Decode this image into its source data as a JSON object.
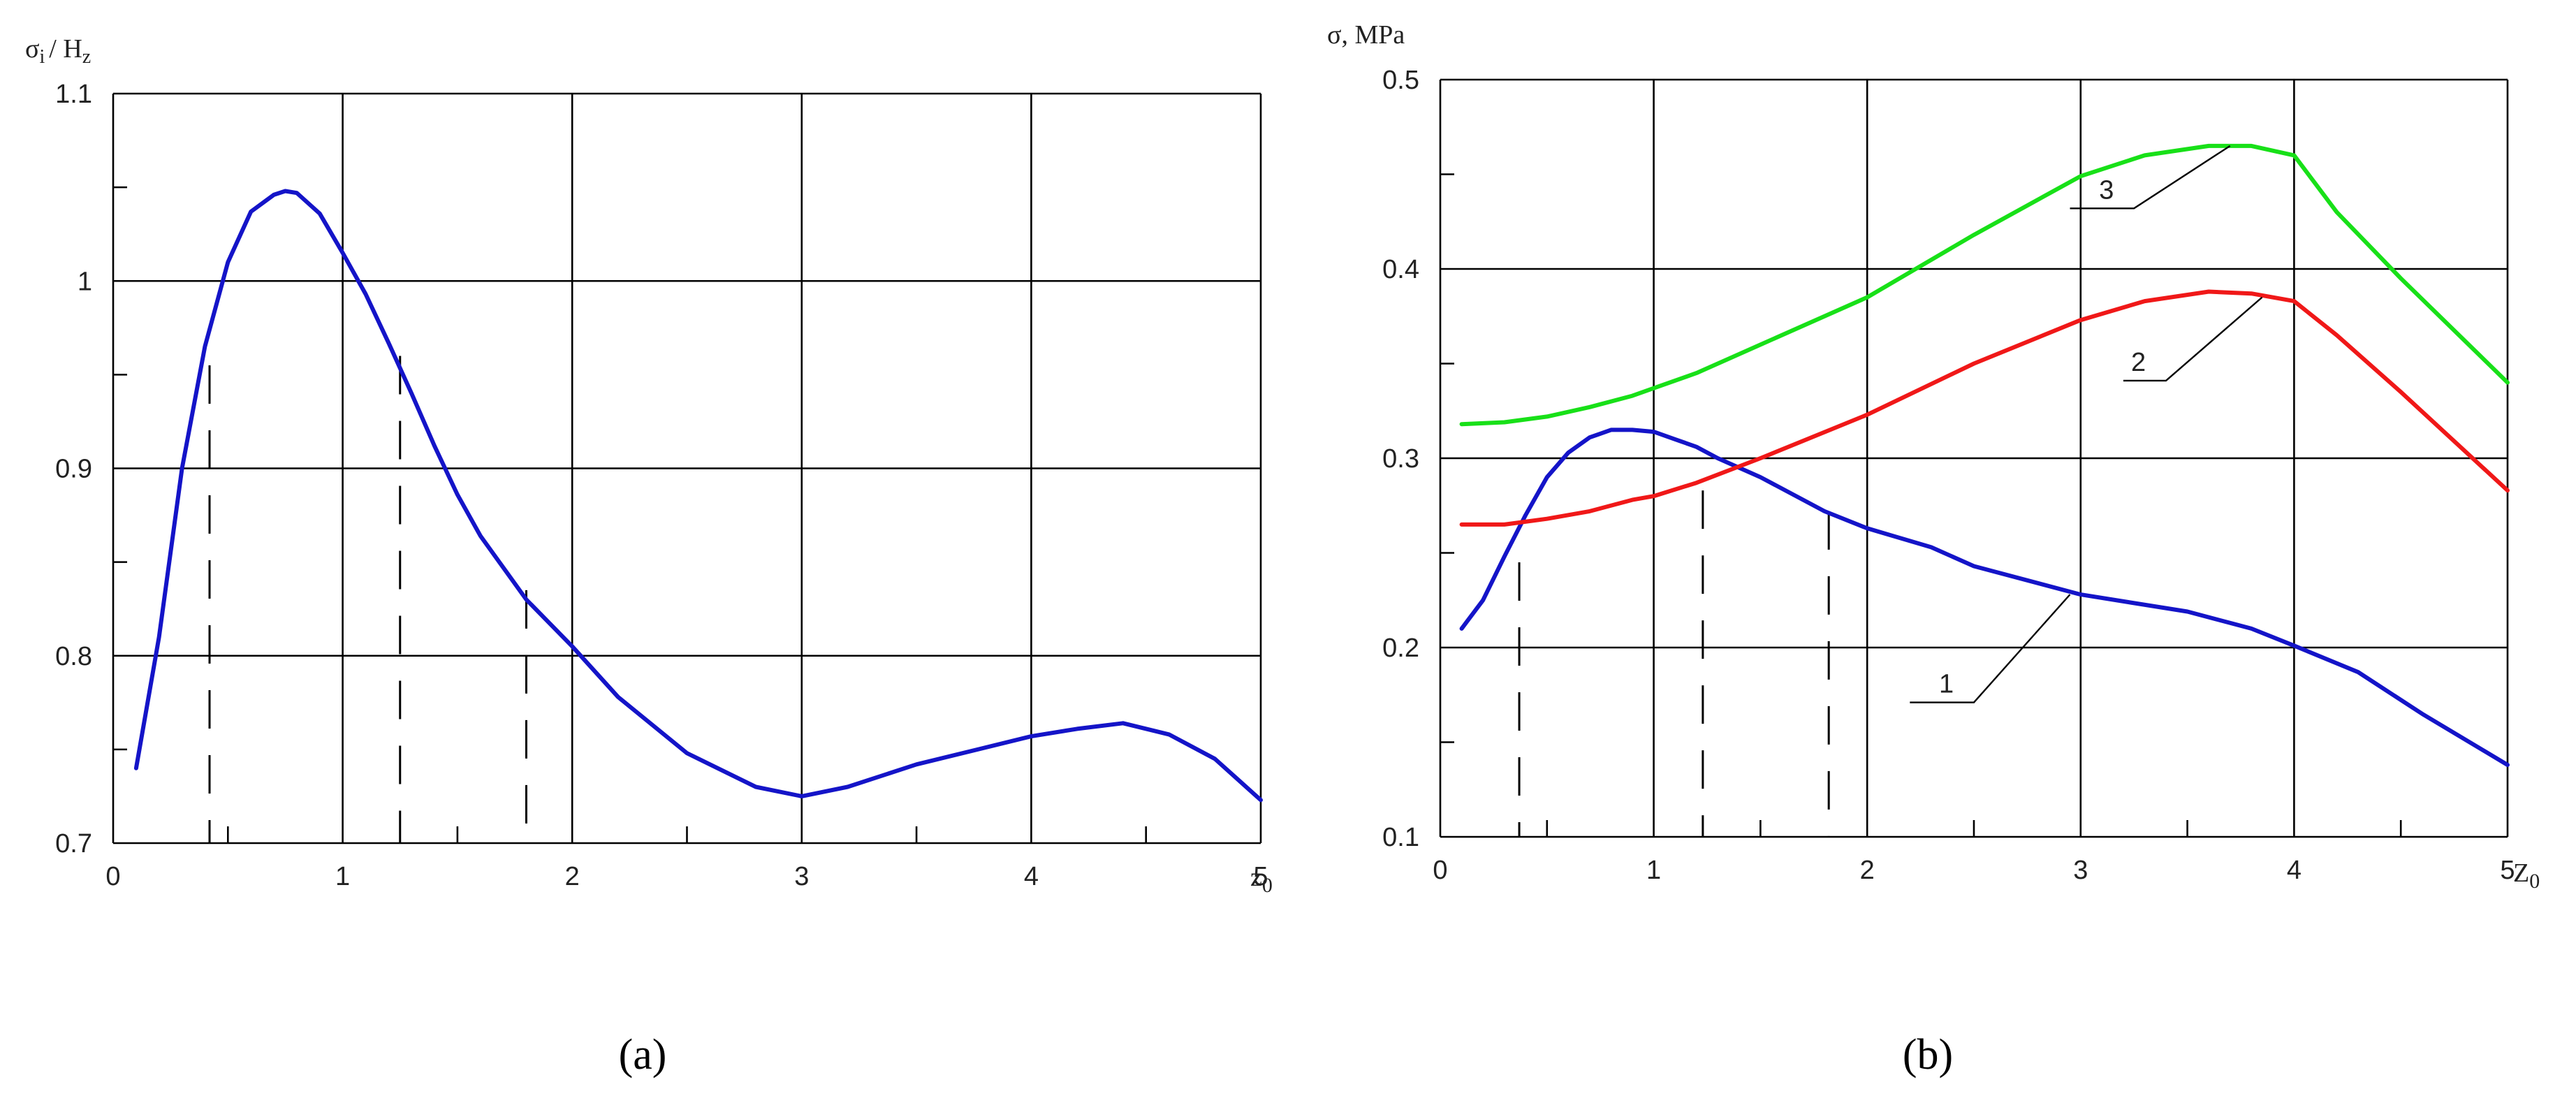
{
  "chart_data": [
    {
      "id": "a",
      "type": "line",
      "sub_label": "(a)",
      "ylabel": {
        "main": "σ",
        "sub": "i",
        "rest": "/ H",
        "sub2": "z"
      },
      "xlabel": {
        "main": "z",
        "sub": "0"
      },
      "xlim": [
        0,
        5
      ],
      "ylim": [
        0.7,
        1.1
      ],
      "x_ticks": [
        0,
        1,
        2,
        3,
        4,
        5
      ],
      "x_tick_labels": [
        "0",
        "1",
        "2",
        "3",
        "4",
        "5"
      ],
      "y_ticks": [
        0.7,
        0.8,
        0.9,
        1,
        1.1
      ],
      "y_tick_labels": [
        "0.7",
        "0.8",
        "0.9",
        "1",
        "1.1"
      ],
      "x_minor_ticks": [
        0.5,
        1.5,
        2.5,
        3.5,
        4.5
      ],
      "y_minor_ticks": [
        0.75,
        0.85,
        0.95,
        1.05
      ],
      "grid": true,
      "series": [
        {
          "color": "#1414c8",
          "x": [
            0.1,
            0.2,
            0.3,
            0.4,
            0.5,
            0.6,
            0.7,
            0.75,
            0.8,
            0.9,
            1.0,
            1.1,
            1.2,
            1.3,
            1.4,
            1.5,
            1.6,
            1.8,
            2.0,
            2.2,
            2.5,
            2.8,
            3.0,
            3.2,
            3.5,
            4.0,
            4.2,
            4.4,
            4.6,
            4.8,
            5.0
          ],
          "y": [
            0.74,
            0.81,
            0.9,
            0.965,
            1.01,
            1.037,
            1.046,
            1.048,
            1.047,
            1.036,
            1.015,
            0.993,
            0.967,
            0.94,
            0.912,
            0.886,
            0.864,
            0.83,
            0.805,
            0.778,
            0.748,
            0.73,
            0.725,
            0.73,
            0.742,
            0.757,
            0.761,
            0.764,
            0.758,
            0.745,
            0.723
          ]
        }
      ],
      "dashed_markers": [
        {
          "x": 0.42,
          "y_top": 0.955
        },
        {
          "x": 1.25,
          "y_top": 0.96
        },
        {
          "x": 1.8,
          "y_top": 0.835
        }
      ]
    },
    {
      "id": "b",
      "type": "line",
      "sub_label": "(b)",
      "ylabel": {
        "main": "σ, MPa"
      },
      "xlabel": {
        "main": "Z",
        "sub": "0"
      },
      "xlim": [
        0,
        5
      ],
      "ylim": [
        0.1,
        0.5
      ],
      "x_ticks": [
        0,
        1,
        2,
        3,
        4,
        5
      ],
      "x_tick_labels": [
        "0",
        "1",
        "2",
        "3",
        "4",
        "5"
      ],
      "y_ticks": [
        0.1,
        0.2,
        0.3,
        0.4,
        0.5
      ],
      "y_tick_labels": [
        "0.1",
        "0.2",
        "0.3",
        "0.4",
        "0.5"
      ],
      "x_minor_ticks": [
        0.5,
        1.5,
        2.5,
        3.5,
        4.5
      ],
      "y_minor_ticks": [
        0.15,
        0.25,
        0.35,
        0.45
      ],
      "grid": true,
      "series": [
        {
          "label": "1",
          "color": "#1414c8",
          "x": [
            0.1,
            0.2,
            0.3,
            0.4,
            0.5,
            0.6,
            0.7,
            0.8,
            0.9,
            1.0,
            1.1,
            1.2,
            1.3,
            1.5,
            1.8,
            2.0,
            2.3,
            2.5,
            3.0,
            3.5,
            3.8,
            4.0,
            4.3,
            4.6,
            5.0
          ],
          "y": [
            0.21,
            0.225,
            0.248,
            0.27,
            0.29,
            0.303,
            0.311,
            0.315,
            0.315,
            0.314,
            0.31,
            0.306,
            0.3,
            0.29,
            0.272,
            0.263,
            0.253,
            0.243,
            0.228,
            0.219,
            0.21,
            0.201,
            0.187,
            0.165,
            0.138
          ]
        },
        {
          "label": "2",
          "color": "#f01818",
          "x": [
            0.1,
            0.3,
            0.5,
            0.7,
            0.9,
            1.0,
            1.2,
            1.5,
            2.0,
            2.5,
            3.0,
            3.3,
            3.6,
            3.8,
            4.0,
            4.2,
            4.5,
            5.0
          ],
          "y": [
            0.265,
            0.265,
            0.268,
            0.272,
            0.278,
            0.28,
            0.287,
            0.3,
            0.323,
            0.35,
            0.373,
            0.383,
            0.388,
            0.387,
            0.383,
            0.365,
            0.335,
            0.283
          ]
        },
        {
          "label": "3",
          "color": "#18e018",
          "x": [
            0.1,
            0.3,
            0.5,
            0.7,
            0.9,
            1.0,
            1.2,
            1.5,
            2.0,
            2.5,
            3.0,
            3.3,
            3.6,
            3.8,
            4.0,
            4.2,
            4.5,
            5.0
          ],
          "y": [
            0.318,
            0.319,
            0.322,
            0.327,
            0.333,
            0.337,
            0.345,
            0.36,
            0.385,
            0.418,
            0.449,
            0.46,
            0.465,
            0.465,
            0.46,
            0.43,
            0.395,
            0.34
          ]
        }
      ],
      "dashed_markers": [
        {
          "x": 0.37,
          "y_top": 0.245
        },
        {
          "x": 1.23,
          "y_top": 0.283
        },
        {
          "x": 1.82,
          "y_top": 0.272
        }
      ],
      "callouts": [
        {
          "label": "3",
          "anchor": [
            3.7,
            0.465
          ],
          "bend": [
            3.25,
            0.432
          ],
          "end": [
            2.95,
            0.432
          ]
        },
        {
          "label": "2",
          "anchor": [
            3.85,
            0.385
          ],
          "bend": [
            3.4,
            0.341
          ],
          "end": [
            3.2,
            0.341
          ]
        },
        {
          "label": "1",
          "anchor": [
            2.95,
            0.228
          ],
          "bend": [
            2.5,
            0.171
          ],
          "end": [
            2.2,
            0.171
          ]
        }
      ]
    }
  ]
}
